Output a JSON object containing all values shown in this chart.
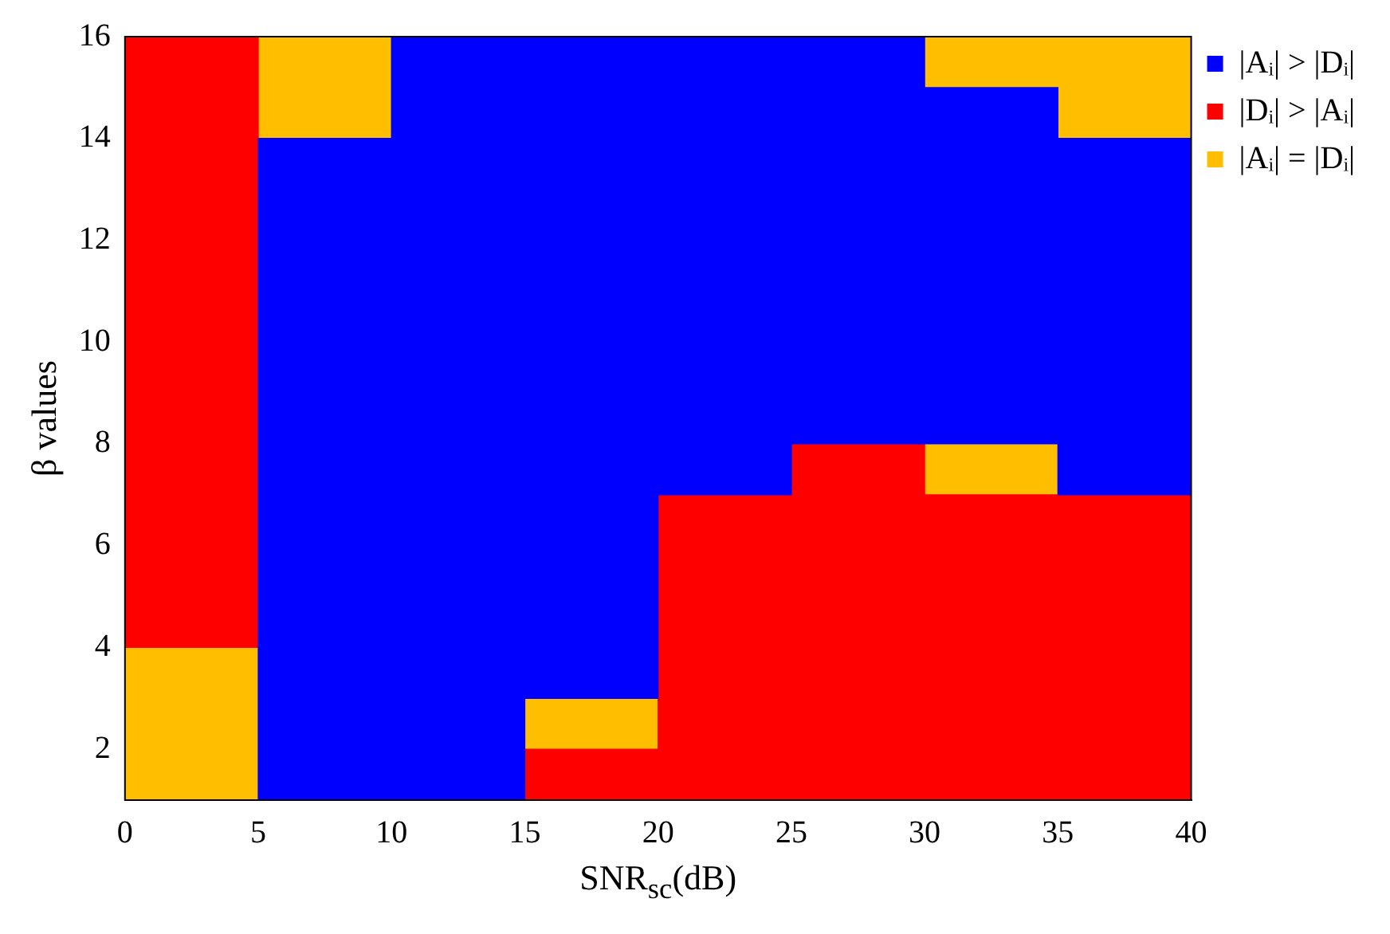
{
  "chart_data": {
    "type": "bar",
    "xlabel": "SNR$_{sc}$(dB)",
    "ylabel": "β values",
    "x": [
      2.5,
      7.5,
      12.5,
      17.5,
      22.5,
      27.5,
      32.5,
      37.5
    ],
    "xlim": [
      0,
      40
    ],
    "xticks": [
      0,
      5,
      10,
      15,
      20,
      25,
      30,
      35,
      40
    ],
    "ylim": [
      1,
      16
    ],
    "yticks": [
      2,
      4,
      6,
      8,
      10,
      12,
      14,
      16
    ],
    "grid": false,
    "legend": "top right",
    "series": [
      {
        "name": "|Aᵢ| > |Dᵢ|",
        "color": "#0000ff",
        "base": [
          null,
          1,
          1,
          3,
          7,
          8,
          8,
          7
        ],
        "values": [
          null,
          13,
          15,
          13,
          9,
          8,
          7,
          7
        ]
      },
      {
        "name": "|Dᵢ| > |Aᵢ|",
        "color": "#ff0000",
        "base": [
          4,
          null,
          null,
          1,
          1,
          1,
          1,
          1
        ],
        "values": [
          12,
          null,
          null,
          1,
          6,
          7,
          6,
          6
        ]
      },
      {
        "name": "|Aᵢ| = |Dᵢ|",
        "color": "#ffbf00",
        "base": [
          1,
          14,
          null,
          2,
          null,
          null,
          7,
          14
        ],
        "values": [
          3,
          2,
          null,
          1,
          null,
          null,
          1,
          2
        ]
      },
      {
        "color": "#ffbf00",
        "base": [
          null,
          null,
          null,
          null,
          null,
          null,
          15,
          null
        ],
        "values": [
          null,
          null,
          null,
          null,
          null,
          null,
          1,
          null
        ]
      }
    ]
  }
}
